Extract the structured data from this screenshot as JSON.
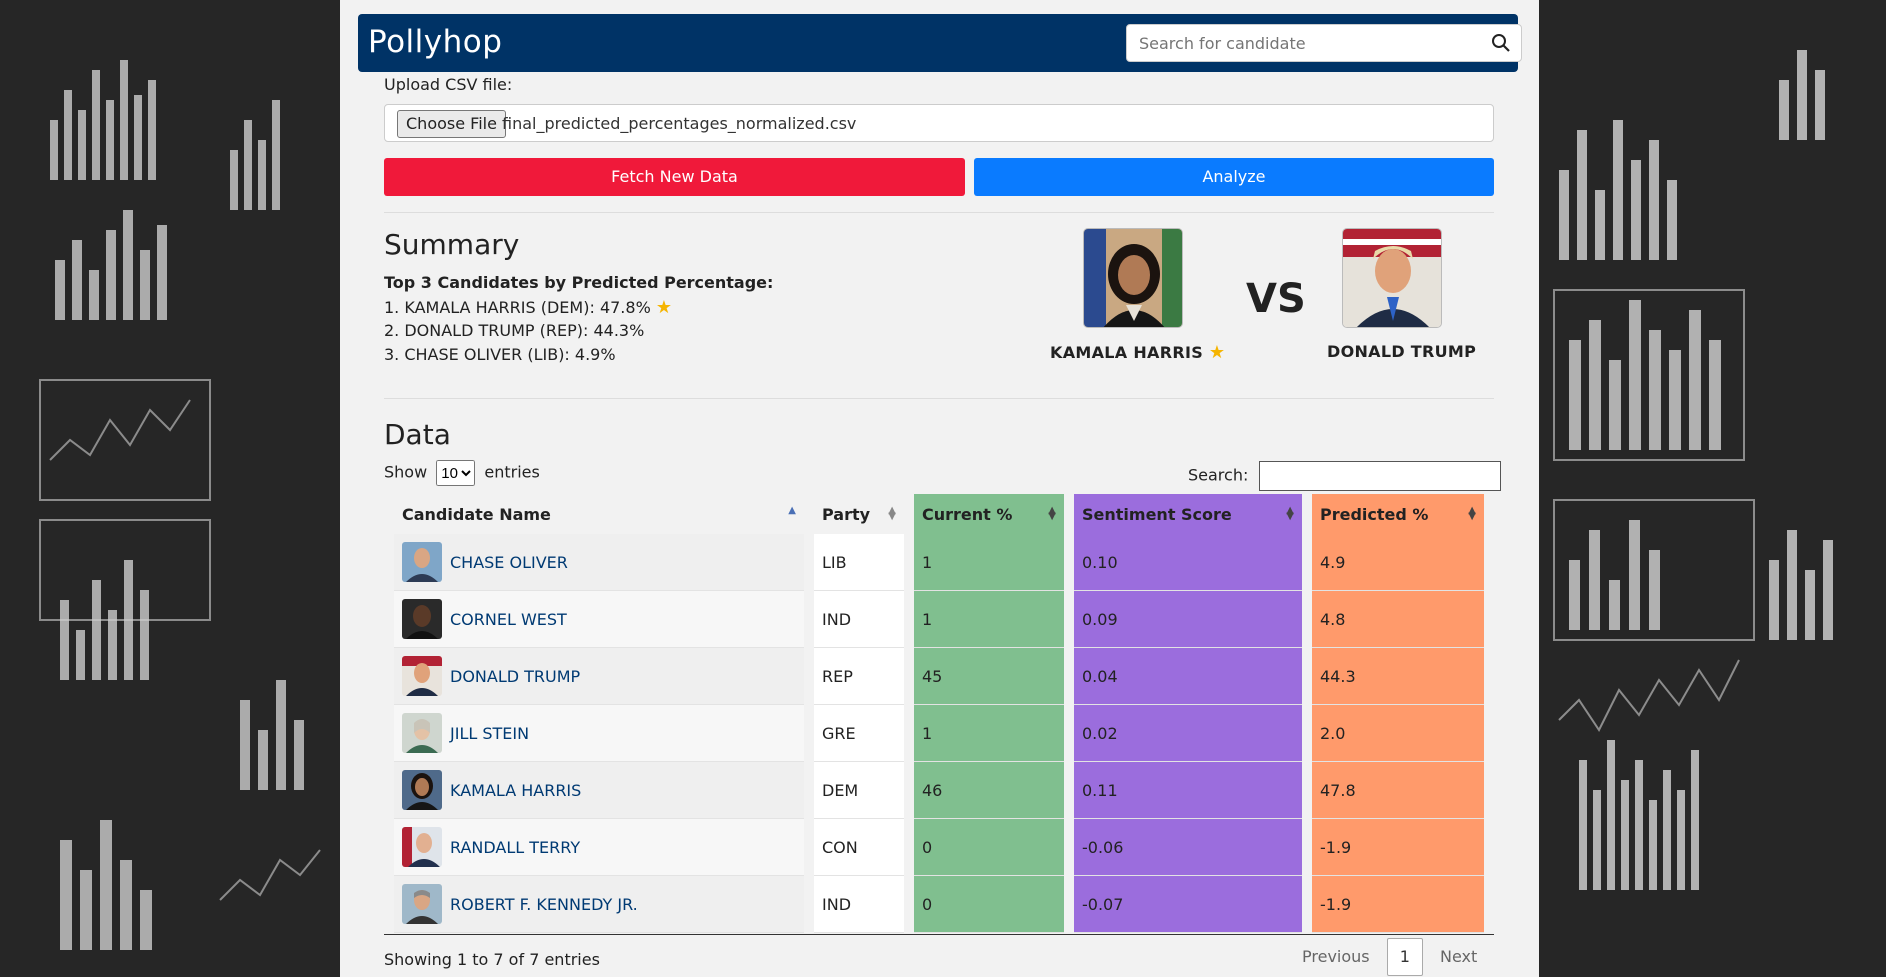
{
  "app": {
    "title": "Pollyhop"
  },
  "search": {
    "placeholder": "Search for candidate"
  },
  "upload": {
    "label": "Upload CSV file:",
    "button": "Choose File",
    "file_name": "final_predicted_percentages_normalized.csv"
  },
  "actions": {
    "fetch": "Fetch New Data",
    "analyze": "Analyze"
  },
  "summary": {
    "title": "Summary",
    "subtitle": "Top 3 Candidates by Predicted Percentage:",
    "lines": [
      "1. KAMALA HARRIS (DEM): 47.8%",
      "2. DONALD TRUMP (REP): 44.3%",
      "3. CHASE OLIVER (LIB): 4.9%"
    ],
    "versus": {
      "left_name": "KAMALA HARRIS",
      "vs": "VS",
      "right_name": "DONALD TRUMP"
    }
  },
  "data": {
    "title": "Data",
    "show_label": "Show",
    "show_value": "10",
    "entries_label": "entries",
    "search_label": "Search:",
    "columns": [
      "Candidate Name",
      "Party",
      "Current %",
      "Sentiment Score",
      "Predicted %"
    ],
    "column_colors": {
      "current": "#80bf8f",
      "sentiment": "#9b6ddd",
      "predicted": "#ff9a6b"
    },
    "rows": [
      {
        "name": "CHASE OLIVER",
        "party": "LIB",
        "current": "1",
        "sentiment": "0.10",
        "predicted": "4.9"
      },
      {
        "name": "CORNEL WEST",
        "party": "IND",
        "current": "1",
        "sentiment": "0.09",
        "predicted": "4.8"
      },
      {
        "name": "DONALD TRUMP",
        "party": "REP",
        "current": "45",
        "sentiment": "0.04",
        "predicted": "44.3"
      },
      {
        "name": "JILL STEIN",
        "party": "GRE",
        "current": "1",
        "sentiment": "0.02",
        "predicted": "2.0"
      },
      {
        "name": "KAMALA HARRIS",
        "party": "DEM",
        "current": "46",
        "sentiment": "0.11",
        "predicted": "47.8"
      },
      {
        "name": "RANDALL TERRY",
        "party": "CON",
        "current": "0",
        "sentiment": "-0.06",
        "predicted": "-1.9"
      },
      {
        "name": "ROBERT F. KENNEDY JR.",
        "party": "IND",
        "current": "0",
        "sentiment": "-0.07",
        "predicted": "-1.9"
      }
    ],
    "info": "Showing 1 to 7 of 7 entries",
    "pager": {
      "previous": "Previous",
      "page": "1",
      "next": "Next"
    }
  }
}
